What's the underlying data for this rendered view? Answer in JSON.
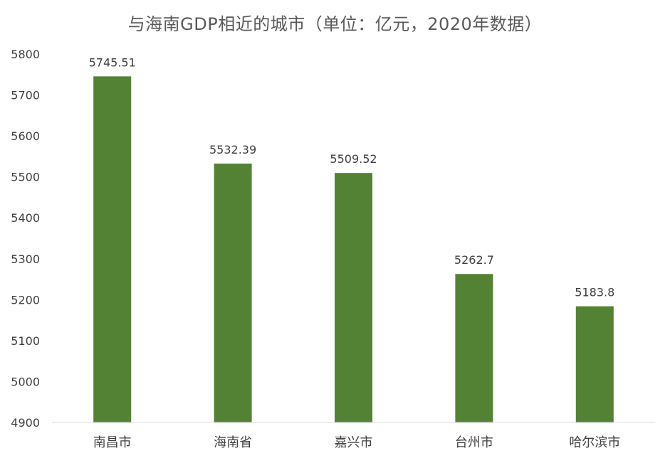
{
  "chart_data": {
    "type": "bar",
    "title": "与海南GDP相近的城市（单位：亿元，2020年数据）",
    "categories": [
      "南昌市",
      "海南省",
      "嘉兴市",
      "台州市",
      "哈尔滨市"
    ],
    "values": [
      5745.51,
      5532.39,
      5509.52,
      5262.7,
      5183.8
    ],
    "data_labels": [
      "5745.51",
      "5532.39",
      "5509.52",
      "5262.7",
      "5183.8"
    ],
    "ylim": [
      4900,
      5800
    ],
    "yticks": [
      4900,
      5000,
      5100,
      5200,
      5300,
      5400,
      5500,
      5600,
      5700,
      5800
    ],
    "bar_color": "#548235",
    "grid": false,
    "legend": "none"
  }
}
